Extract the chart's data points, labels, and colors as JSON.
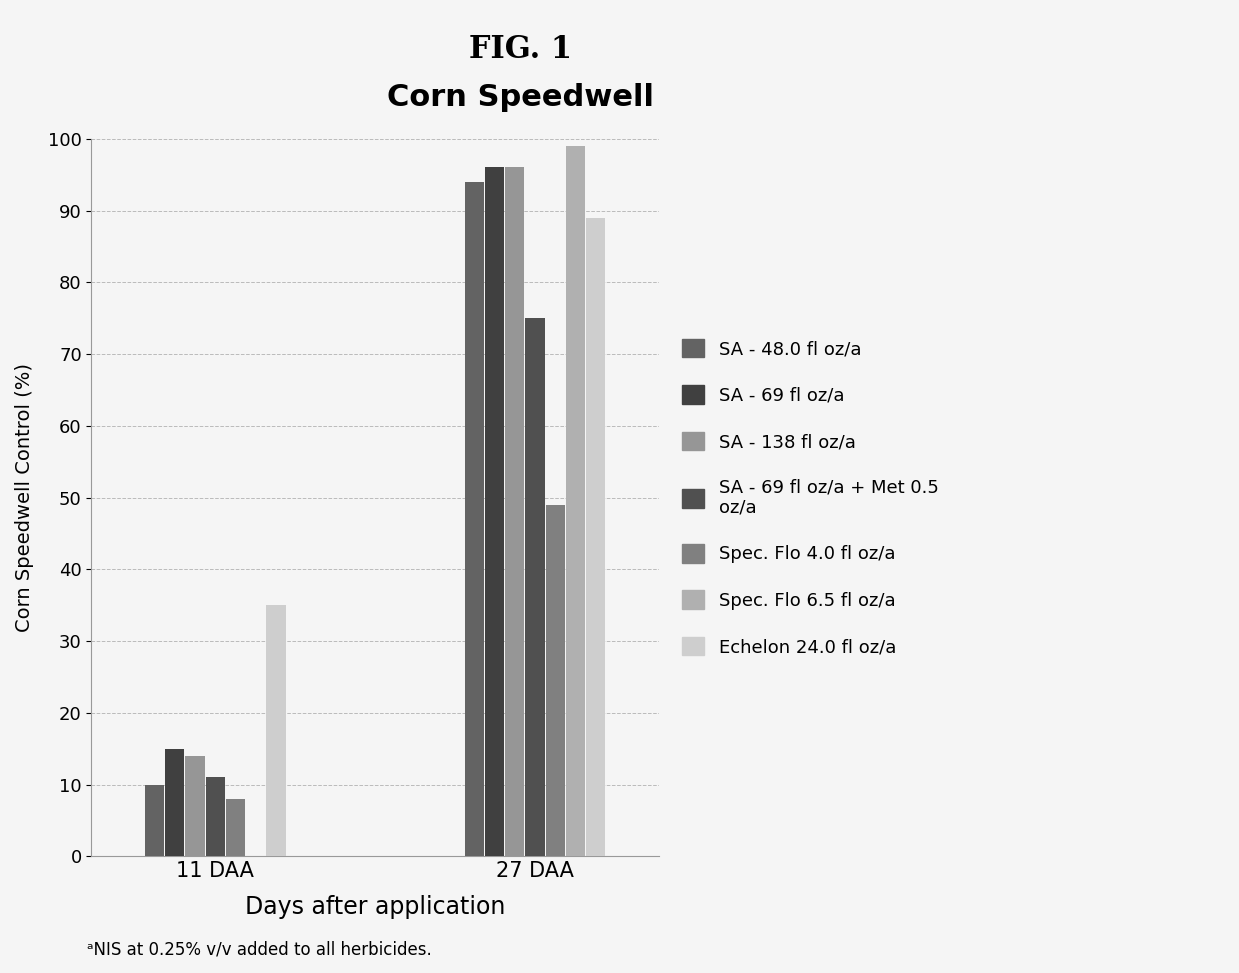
{
  "title_top": "FIG. 1",
  "title_main": "Corn Speedwell",
  "xlabel": "Days after application",
  "ylabel": "Corn Speedwell Control (%)",
  "footnote": "ᵃNIS at 0.25% v/v added to all herbicides.",
  "categories": [
    "11 DAA",
    "27 DAA"
  ],
  "series": [
    {
      "label": "SA - 48.0 fl oz/a",
      "values": [
        10,
        94
      ],
      "color": "#636363"
    },
    {
      "label": "SA - 69 fl oz/a",
      "values": [
        15,
        96
      ],
      "color": "#404040"
    },
    {
      "label": "SA - 138 fl oz/a",
      "values": [
        14,
        96
      ],
      "color": "#969696"
    },
    {
      "label": "SA - 69 fl oz/a + Met 0.5\noz/a",
      "values": [
        11,
        75
      ],
      "color": "#505050"
    },
    {
      "label": "Spec. Flo 4.0 fl oz/a",
      "values": [
        8,
        49
      ],
      "color": "#808080"
    },
    {
      "label": "Spec. Flo 6.5 fl oz/a",
      "values": [
        0,
        99
      ],
      "color": "#b0b0b0"
    },
    {
      "label": "Echelon 24.0 fl oz/a",
      "values": [
        35,
        89
      ],
      "color": "#cecece"
    }
  ],
  "ylim": [
    0,
    100
  ],
  "yticks": [
    0,
    10,
    20,
    30,
    40,
    50,
    60,
    70,
    80,
    90,
    100
  ],
  "background_color": "#f5f5f5",
  "grid_color": "#bbbbbb",
  "figsize": [
    12.39,
    9.73
  ],
  "dpi": 100
}
